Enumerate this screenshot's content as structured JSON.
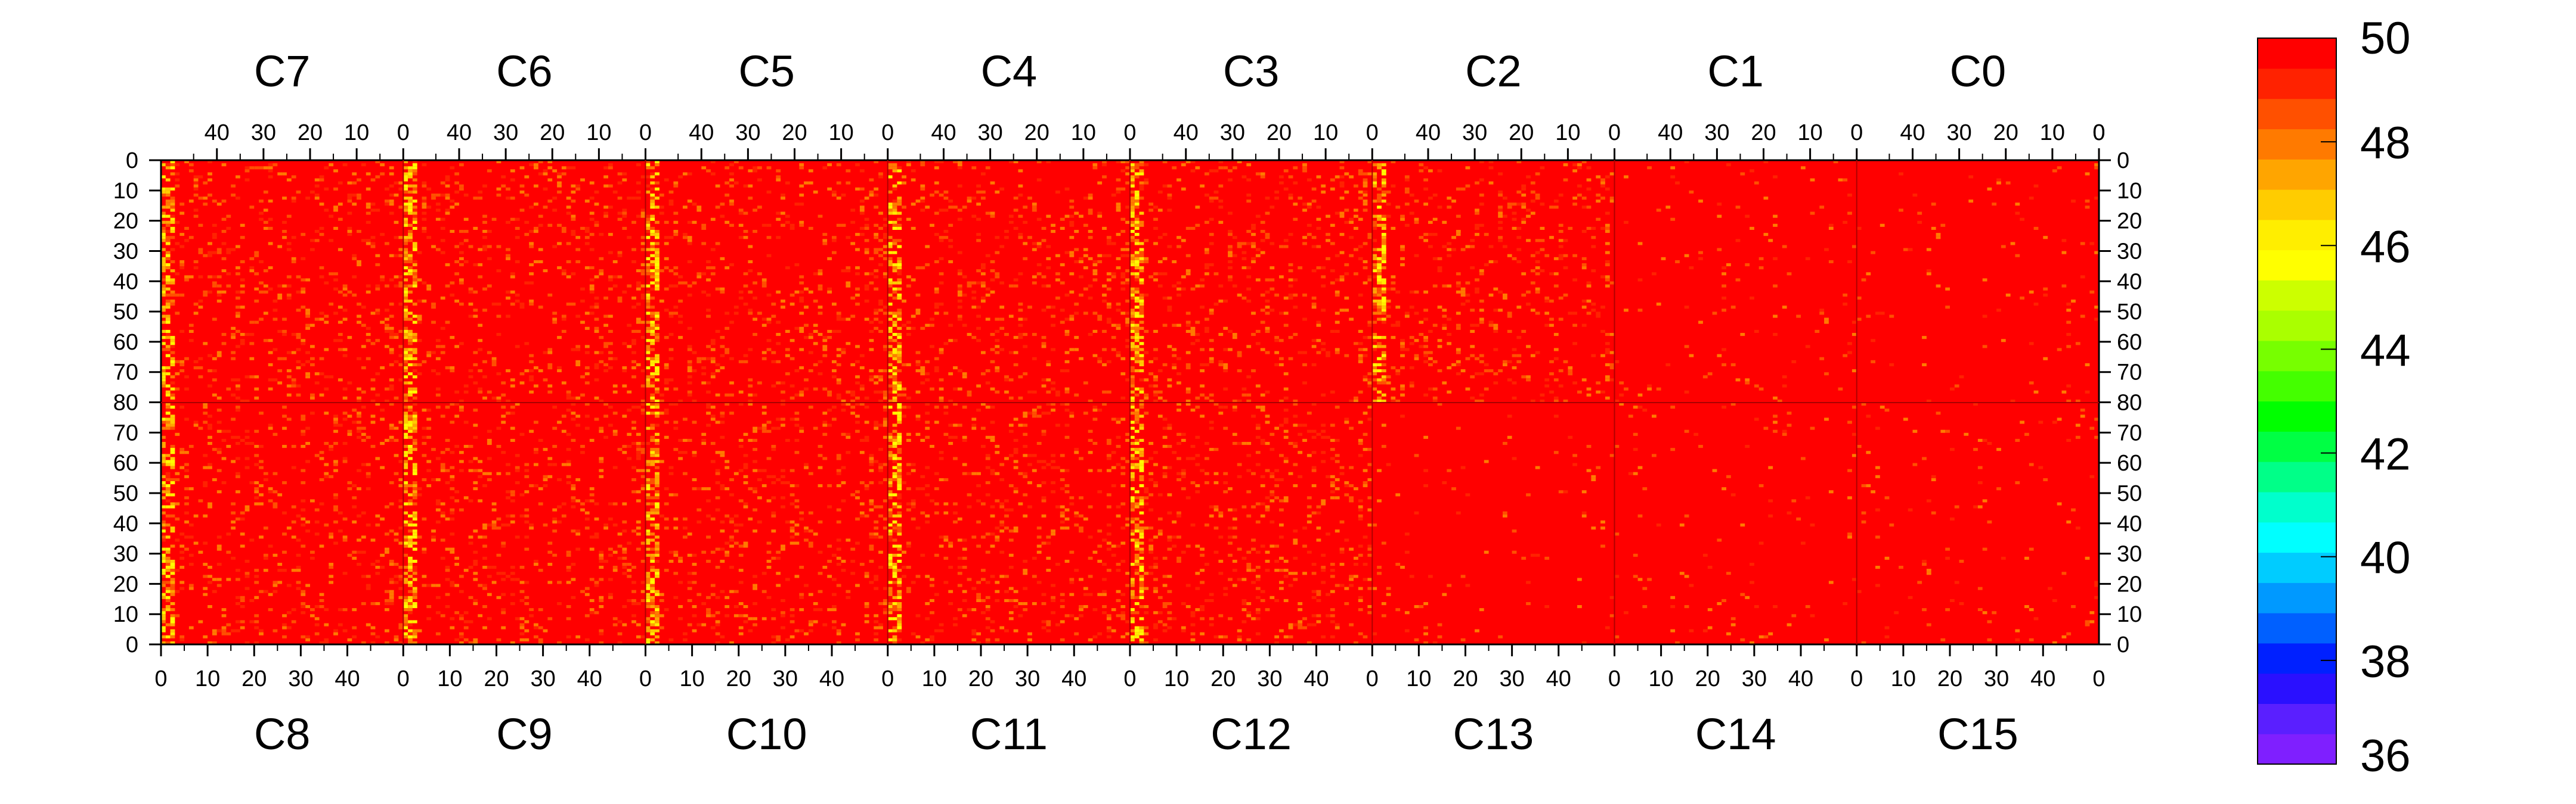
{
  "chart_data": {
    "type": "heatmap",
    "title": "",
    "xlabel": "",
    "ylabel": "",
    "top_chips": [
      "C7",
      "C6",
      "C5",
      "C4",
      "C3",
      "C2",
      "C1",
      "C0"
    ],
    "bottom_chips": [
      "C8",
      "C9",
      "C10",
      "C11",
      "C12",
      "C13",
      "C14",
      "C15"
    ],
    "top_x_ticks": [
      "40",
      "30",
      "20",
      "10",
      "0"
    ],
    "bottom_x_ticks": [
      "0",
      "10",
      "20",
      "30",
      "40"
    ],
    "top_x_tick_values": [
      40,
      30,
      20,
      10,
      0
    ],
    "bottom_x_tick_values": [
      0,
      10,
      20,
      30,
      40
    ],
    "x_range_per_chip": [
      0,
      52
    ],
    "y_ticks": [
      "0",
      "10",
      "20",
      "30",
      "40",
      "50",
      "60",
      "70",
      "80",
      "70",
      "60",
      "50",
      "40",
      "30",
      "20",
      "10",
      "0"
    ],
    "y_range_per_half": [
      0,
      80
    ],
    "z_range": [
      36,
      50
    ],
    "colorbar_labels": [
      "50",
      "48",
      "46",
      "44",
      "42",
      "40",
      "38",
      "36"
    ],
    "colorbar_values": [
      50,
      48,
      46,
      44,
      42,
      40,
      38,
      36
    ],
    "palette": [
      "#7f1fff",
      "#5a1fff",
      "#2a10ff",
      "#0020ff",
      "#0060ff",
      "#0099ff",
      "#00ccff",
      "#00ffff",
      "#00ffcc",
      "#00ff88",
      "#00ff44",
      "#00ff00",
      "#44ff00",
      "#77ff00",
      "#aaff00",
      "#ccff00",
      "#ffff00",
      "#ffee00",
      "#ffcc00",
      "#ffa500",
      "#ff7a00",
      "#ff5000",
      "#ff2200",
      "#ff0000"
    ],
    "background_color": "#ff0000",
    "dominant_value": 50,
    "noisy_chip_columns": {
      "top": [
        "C7",
        "C6",
        "C5",
        "C4",
        "C3",
        "C2"
      ],
      "bottom": [
        "C8",
        "C9",
        "C10",
        "C11",
        "C12"
      ]
    },
    "grid": false
  }
}
